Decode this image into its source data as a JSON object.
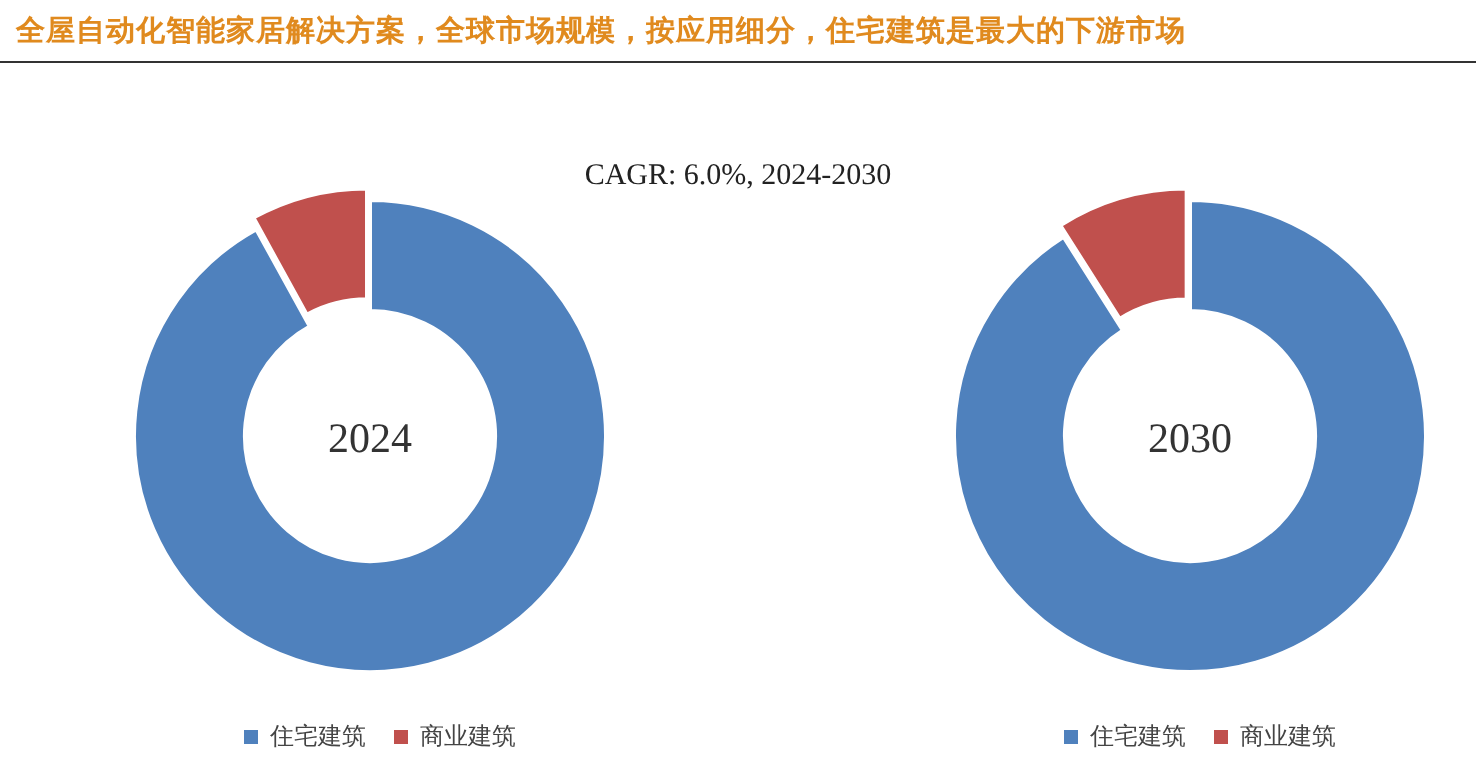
{
  "chart_data": [
    {
      "type": "donut",
      "title": "全屋自动化智能家居解决方案，全球市场规模，按应用细分，住宅建筑是最大的下游市场",
      "subtitle": "CAGR:   6.0%, 2024-2030",
      "annotations": [
        "2024"
      ],
      "categories": [
        "住宅建筑",
        "商业建筑"
      ],
      "values": [
        92,
        8
      ],
      "colors": [
        "#4f81bd",
        "#c0504d"
      ],
      "legend": "bottom"
    },
    {
      "type": "donut",
      "annotations": [
        "2030"
      ],
      "categories": [
        "住宅建筑",
        "商业建筑"
      ],
      "values": [
        91,
        9
      ],
      "colors": [
        "#4f81bd",
        "#c0504d"
      ],
      "legend": "bottom"
    }
  ]
}
